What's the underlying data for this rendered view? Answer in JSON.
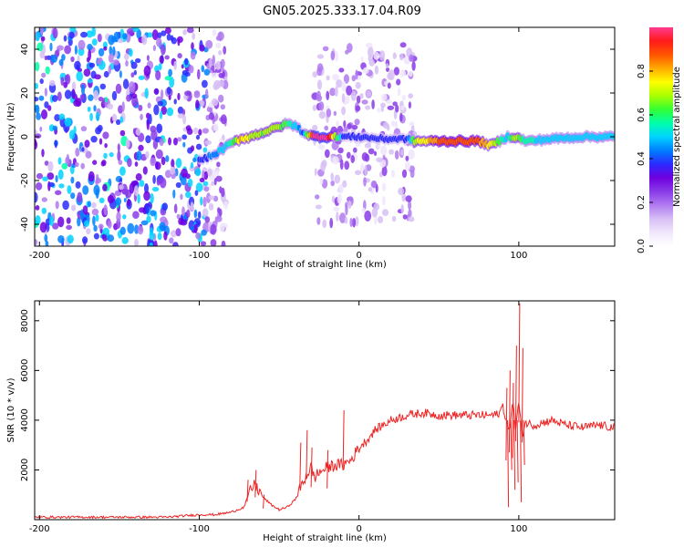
{
  "title": "GN05.2025.333.17.04.R09",
  "chart_data": [
    {
      "type": "heatmap",
      "xlabel": "Height of straight line (km)",
      "ylabel": "Frequency (Hz)",
      "xlim": [
        -203,
        160
      ],
      "ylim": [
        -50,
        50
      ],
      "xticks": [
        -200,
        -100,
        0,
        100
      ],
      "yticks": [
        -40,
        -20,
        0,
        20,
        40
      ],
      "colorbar": {
        "label": "Normalized spectral amplitude",
        "range": [
          0,
          1
        ],
        "ticks": [
          "0.0",
          "0.2",
          "0.4",
          "0.6",
          "0.8"
        ],
        "colors": [
          "#ffffff",
          "#f0e6fb",
          "#d7bff5",
          "#b07af0",
          "#8a3be8",
          "#6f00e0",
          "#2a2aff",
          "#0080ff",
          "#00d4ff",
          "#00ffaa",
          "#33ff33",
          "#aaff00",
          "#ffff00",
          "#ffaa00",
          "#ff5500",
          "#ff1a1a",
          "#ff3b8e"
        ]
      },
      "noise_regions": [
        {
          "x": [
            -203,
            -83
          ],
          "y": [
            -50,
            50
          ],
          "level": 0.3
        },
        {
          "x": [
            -28,
            35
          ],
          "y": [
            -40,
            42
          ],
          "level": 0.15
        }
      ],
      "signal_track": [
        {
          "x": -100,
          "y": -11,
          "a": 0.35
        },
        {
          "x": -90,
          "y": -8,
          "a": 0.45
        },
        {
          "x": -80,
          "y": -3,
          "a": 0.55
        },
        {
          "x": -74,
          "y": -1,
          "a": 0.8
        },
        {
          "x": -68,
          "y": 0,
          "a": 0.7
        },
        {
          "x": -60,
          "y": 2,
          "a": 0.65
        },
        {
          "x": -52,
          "y": 4,
          "a": 0.7
        },
        {
          "x": -45,
          "y": 6,
          "a": 0.6
        },
        {
          "x": -40,
          "y": 5,
          "a": 0.5
        },
        {
          "x": -35,
          "y": 2,
          "a": 0.4
        },
        {
          "x": -28,
          "y": 0,
          "a": 1.0
        },
        {
          "x": -20,
          "y": 0,
          "a": 1.0
        },
        {
          "x": -10,
          "y": 0,
          "a": 0.4
        },
        {
          "x": 0,
          "y": 0,
          "a": 0.35
        },
        {
          "x": 15,
          "y": -1,
          "a": 0.35
        },
        {
          "x": 30,
          "y": -1,
          "a": 0.35
        },
        {
          "x": 35,
          "y": -2,
          "a": 0.7
        },
        {
          "x": 50,
          "y": -2,
          "a": 0.85
        },
        {
          "x": 65,
          "y": -2,
          "a": 0.9
        },
        {
          "x": 75,
          "y": -2,
          "a": 0.85
        },
        {
          "x": 82,
          "y": -4,
          "a": 0.75
        },
        {
          "x": 88,
          "y": -2,
          "a": 0.6
        },
        {
          "x": 93,
          "y": 0,
          "a": 0.5
        },
        {
          "x": 97,
          "y": 0,
          "a": 0.7
        },
        {
          "x": 105,
          "y": -2,
          "a": 0.55
        },
        {
          "x": 120,
          "y": -1,
          "a": 0.5
        },
        {
          "x": 140,
          "y": 0,
          "a": 0.5
        },
        {
          "x": 160,
          "y": 0,
          "a": 0.5
        }
      ]
    },
    {
      "type": "line",
      "xlabel": "Height of straight line (km)",
      "ylabel": "SNR (10 * v/v)",
      "xlim": [
        -203,
        160
      ],
      "ylim": [
        0,
        8800
      ],
      "xticks": [
        -200,
        -100,
        0,
        100
      ],
      "yticks": [
        2000,
        4000,
        6000,
        8000
      ],
      "color": "#ee2222",
      "series": [
        {
          "x": [
            -203,
            -180,
            -160,
            -140,
            -120,
            -100,
            -90,
            -80,
            -72,
            -68,
            -65,
            -60,
            -55,
            -50,
            -45,
            -40,
            -35,
            -32,
            -30,
            -28,
            -25,
            -20,
            -15,
            -10,
            -5,
            0,
            5,
            10,
            20,
            30,
            40,
            50,
            60,
            70,
            80,
            85,
            88,
            90,
            92,
            94,
            96,
            98,
            100,
            102,
            104,
            110,
            120,
            130,
            140,
            150,
            160
          ],
          "y": [
            100,
            100,
            100,
            100,
            100,
            200,
            200,
            300,
            500,
            1200,
            1400,
            900,
            600,
            400,
            500,
            800,
            1500,
            1900,
            2100,
            1700,
            1900,
            2100,
            2200,
            2200,
            2400,
            2900,
            3200,
            3600,
            4000,
            4200,
            4300,
            4200,
            4200,
            4200,
            4200,
            4200,
            4300,
            4600,
            4000,
            3500,
            4800,
            3700,
            4700,
            3400,
            3900,
            3800,
            4000,
            3800,
            3700,
            3800,
            3700
          ]
        }
      ],
      "spikes": [
        {
          "x": -70,
          "ymax": 1600
        },
        {
          "x": -65,
          "ymax": 2000
        },
        {
          "x": -60,
          "ymax": 1000
        },
        {
          "x": -37,
          "ymax": 3100
        },
        {
          "x": -33,
          "ymax": 3600
        },
        {
          "x": -30,
          "ymax": 2900
        },
        {
          "x": -20,
          "ymax": 2800
        },
        {
          "x": -10,
          "ymax": 4400
        },
        {
          "x": 92,
          "ymax": 5300
        },
        {
          "x": 94,
          "ymax": 6000
        },
        {
          "x": 96,
          "ymax": 5500
        },
        {
          "x": 98,
          "ymax": 7000
        },
        {
          "x": 100,
          "ymax": 8700
        },
        {
          "x": 102,
          "ymax": 6900
        }
      ],
      "dips": [
        {
          "x": 93,
          "ymin": 500
        },
        {
          "x": 95,
          "ymin": 2000
        },
        {
          "x": 97,
          "ymin": 1200
        },
        {
          "x": 99,
          "ymin": 1500
        },
        {
          "x": 101,
          "ymin": 700
        },
        {
          "x": 103,
          "ymin": 2200
        }
      ]
    }
  ]
}
